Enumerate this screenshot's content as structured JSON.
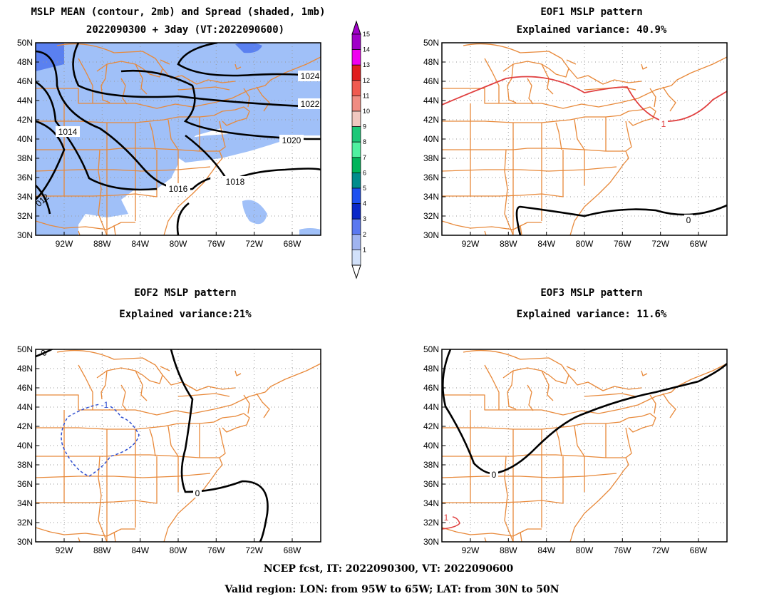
{
  "panels": {
    "mean": {
      "title_line1": "MSLP MEAN (contour, 2mb) and Spread (shaded, 1mb)",
      "title_line2": "2022090300 + 3day (VT:2022090600)"
    },
    "eof1": {
      "title": "EOF1 MSLP pattern",
      "variance": "Explained variance: 40.9%"
    },
    "eof2": {
      "title": "EOF2 MSLP pattern",
      "variance": "Explained variance:21%"
    },
    "eof3": {
      "title": "EOF3 MSLP pattern",
      "variance": "Explained variance: 11.6%"
    }
  },
  "axes": {
    "lat_labels": [
      "50N",
      "48N",
      "46N",
      "44N",
      "42N",
      "40N",
      "38N",
      "36N",
      "34N",
      "32N",
      "30N"
    ],
    "lon_labels": [
      "92W",
      "88W",
      "84W",
      "80W",
      "76W",
      "72W",
      "68W"
    ]
  },
  "contour_labels": {
    "mean": [
      "1024",
      "1022",
      "1020",
      "1018",
      "1016",
      "1014",
      "012"
    ],
    "eof1": [
      "1",
      "0"
    ],
    "eof2": [
      "0",
      "-1",
      "0"
    ],
    "eof3": [
      "0",
      "1"
    ]
  },
  "colorbar": {
    "levels": [
      "15",
      "14",
      "13",
      "12",
      "11",
      "10",
      "9",
      "8",
      "7",
      "6",
      "5",
      "4",
      "3",
      "2",
      "1"
    ],
    "colors": [
      "#a000c8",
      "#f000f0",
      "#e01e1e",
      "#f05a50",
      "#f08c82",
      "#f0c8c0",
      "#1ec878",
      "#50f0a0",
      "#00b45a",
      "#008c8c",
      "#1e50f0",
      "#0a28c8",
      "#5a78f0",
      "#a0b4f0",
      "#d2e1fa"
    ]
  },
  "colors": {
    "map": "#e8893a",
    "spread_light": "#a0c0f8",
    "spread_dark": "#5a80f0",
    "eof_positive": "#e04040",
    "eof_negative": "#3050d0",
    "grid": "#999999"
  },
  "footer": {
    "line1": "NCEP fcst, IT: 2022090300, VT: 2022090600",
    "line2": "Valid region: LON: from 95W to 65W; LAT: from 30N to 50N"
  }
}
